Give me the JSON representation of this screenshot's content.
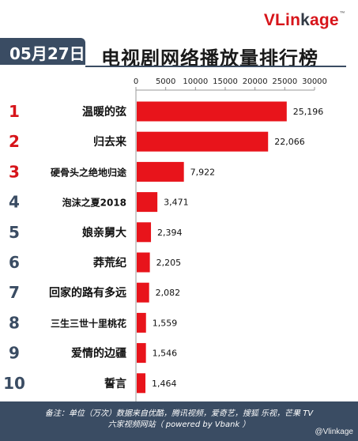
{
  "header": {
    "logo": "VLinkage",
    "date": "05月27日",
    "title": "电视剧网络播放量排行榜"
  },
  "chart_data": {
    "type": "bar",
    "orientation": "horizontal",
    "title": "电视剧网络播放量排行榜",
    "ranks": [
      "1",
      "2",
      "3",
      "4",
      "5",
      "6",
      "7",
      "8",
      "9",
      "10"
    ],
    "categories": [
      "温暖的弦",
      "归去来",
      "硬骨头之绝地归途",
      "泡沫之夏2018",
      "娘亲舅大",
      "莽荒纪",
      "回家的路有多远",
      "三生三世十里桃花",
      "爱情的边疆",
      "誓言"
    ],
    "values": [
      25196,
      22066,
      7922,
      3471,
      2394,
      2205,
      2082,
      1559,
      1546,
      1464
    ],
    "value_labels": [
      "25,196",
      "22,066",
      "7,922",
      "3,471",
      "2,394",
      "2,205",
      "2,082",
      "1,559",
      "1,546",
      "1,464"
    ],
    "xlim": [
      0,
      30000
    ],
    "xticks": [
      "0",
      "5000",
      "10000",
      "15000",
      "20000",
      "25000",
      "30000"
    ],
    "axis_position": "top",
    "grid": false,
    "bar_color": "#e8141b",
    "rank_colors": [
      "#d7141a",
      "#d7141a",
      "#d7141a",
      "#3a4c63",
      "#3a4c63",
      "#3a4c63",
      "#3a4c63",
      "#3a4c63",
      "#3a4c63",
      "#3a4c63"
    ]
  },
  "footer": {
    "line1": "备注：单位（万次）数据来自优酷，腾讯视频，爱奇艺，搜狐 乐视，芒果 TV",
    "line2": "六家视频网站（ powered by Vbank ）"
  },
  "watermark": "@Vlinkage"
}
